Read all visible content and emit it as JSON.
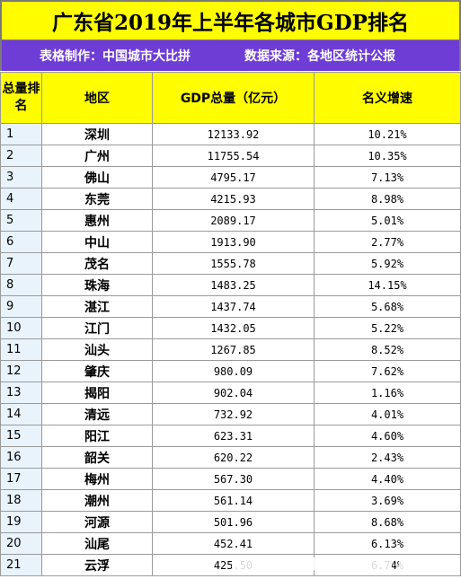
{
  "title": "广东省2019年上半年各城市GDP排名",
  "subtitle": {
    "maker": "表格制作：中国城市大比拼",
    "source": "数据来源：各地区统计公报"
  },
  "headers": {
    "rank": "总量排名",
    "region": "地区",
    "gdp": "GDP总量（亿元）",
    "growth": "名义增速"
  },
  "rows": [
    {
      "rank": "1",
      "region": "深圳",
      "gdp": "12133.92",
      "growth": "10.21%"
    },
    {
      "rank": "2",
      "region": "广州",
      "gdp": "11755.54",
      "growth": "10.35%"
    },
    {
      "rank": "3",
      "region": "佛山",
      "gdp": "4795.17",
      "growth": "7.13%"
    },
    {
      "rank": "4",
      "region": "东莞",
      "gdp": "4215.93",
      "growth": "8.98%"
    },
    {
      "rank": "5",
      "region": "惠州",
      "gdp": "2089.17",
      "growth": "5.01%"
    },
    {
      "rank": "6",
      "region": "中山",
      "gdp": "1913.90",
      "growth": "2.77%"
    },
    {
      "rank": "7",
      "region": "茂名",
      "gdp": "1555.78",
      "growth": "5.92%"
    },
    {
      "rank": "8",
      "region": "珠海",
      "gdp": "1483.25",
      "growth": "14.15%"
    },
    {
      "rank": "9",
      "region": "湛江",
      "gdp": "1437.74",
      "growth": "5.68%"
    },
    {
      "rank": "10",
      "region": "江门",
      "gdp": "1432.05",
      "growth": "5.22%"
    },
    {
      "rank": "11",
      "region": "汕头",
      "gdp": "1267.85",
      "growth": "8.52%"
    },
    {
      "rank": "12",
      "region": "肇庆",
      "gdp": "980.09",
      "growth": "7.62%"
    },
    {
      "rank": "13",
      "region": "揭阳",
      "gdp": "902.04",
      "growth": "1.16%"
    },
    {
      "rank": "14",
      "region": "清远",
      "gdp": "732.92",
      "growth": "4.01%"
    },
    {
      "rank": "15",
      "region": "阳江",
      "gdp": "623.31",
      "growth": "4.60%"
    },
    {
      "rank": "16",
      "region": "韶关",
      "gdp": "620.22",
      "growth": "2.43%"
    },
    {
      "rank": "17",
      "region": "梅州",
      "gdp": "567.30",
      "growth": "4.40%"
    },
    {
      "rank": "18",
      "region": "潮州",
      "gdp": "561.14",
      "growth": "3.69%"
    },
    {
      "rank": "19",
      "region": "河源",
      "gdp": "501.96",
      "growth": "8.68%"
    },
    {
      "rank": "20",
      "region": "汕尾",
      "gdp": "452.41",
      "growth": "6.13%"
    },
    {
      "rank": "21",
      "region": "云浮",
      "gdp": "425.50",
      "growth": "6.74%"
    }
  ]
}
